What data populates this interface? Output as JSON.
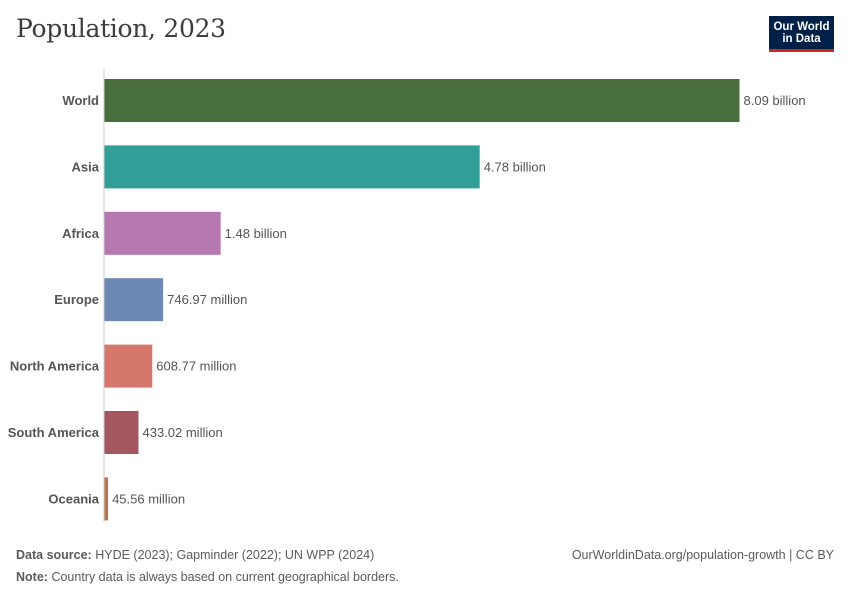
{
  "header": {
    "title": "Population, 2023",
    "logo_line1": "Our World",
    "logo_line2": "in Data"
  },
  "footer": {
    "source_label": "Data source:",
    "source_text": "HYDE (2023); Gapminder (2022); UN WPP (2024)",
    "link": "OurWorldinData.org/population-growth | CC BY",
    "note_label": "Note:",
    "note_text": "Country data is always based on current geographical borders."
  },
  "chart_data": {
    "type": "bar",
    "orientation": "horizontal",
    "title": "Population, 2023",
    "categories": [
      "World",
      "Asia",
      "Africa",
      "Europe",
      "North America",
      "South America",
      "Oceania"
    ],
    "values": [
      8090000000,
      4780000000,
      1480000000,
      746970000,
      608770000,
      433020000,
      45560000
    ],
    "value_labels": [
      "8.09 billion",
      "4.78 billion",
      "1.48 billion",
      "746.97 million",
      "608.77 million",
      "433.02 million",
      "45.56 million"
    ],
    "colors": [
      "#4a6f3f",
      "#329e98",
      "#b678b1",
      "#6d89b3",
      "#d5776b",
      "#a5575f",
      "#b8764e"
    ],
    "xlim": [
      0,
      8090000000
    ],
    "grid": false
  }
}
